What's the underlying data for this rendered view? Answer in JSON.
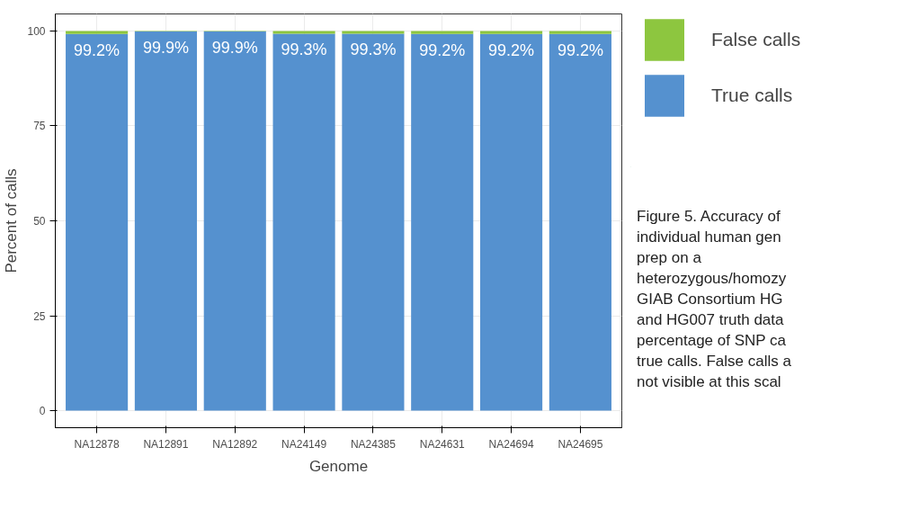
{
  "chart_data": {
    "type": "bar",
    "stacked": true,
    "xlabel": "Genome",
    "ylabel": "Percent of calls",
    "categories": [
      "NA12878",
      "NA12891",
      "NA12892",
      "NA24149",
      "NA24385",
      "NA24631",
      "NA24694",
      "NA24695"
    ],
    "series": [
      {
        "name": "True calls",
        "color": "#5591cf",
        "values": [
          99.2,
          99.9,
          99.9,
          99.3,
          99.3,
          99.2,
          99.2,
          99.2
        ],
        "value_labels": [
          "99.2%",
          "99.9%",
          "99.9%",
          "99.3%",
          "99.3%",
          "99.2%",
          "99.2%",
          "99.2%"
        ]
      },
      {
        "name": "False calls",
        "color": "#8dc63f",
        "values": [
          0.8,
          0.1,
          0.1,
          0.7,
          0.7,
          0.8,
          0.8,
          0.8
        ]
      }
    ],
    "ylim": [
      -4.5,
      104.5
    ],
    "yticks": [
      0,
      25,
      50,
      75,
      100
    ],
    "grid": true,
    "legend": "top right",
    "annotations": [
      "Figure 5. Accuracy of",
      "individual human gen",
      "prep on a",
      "heterozygous/homozy",
      "GIAB Consortium HG",
      "and HG007 truth data",
      "percentage of SNP ca",
      "true calls. False calls a",
      "not visible at this scal"
    ]
  }
}
